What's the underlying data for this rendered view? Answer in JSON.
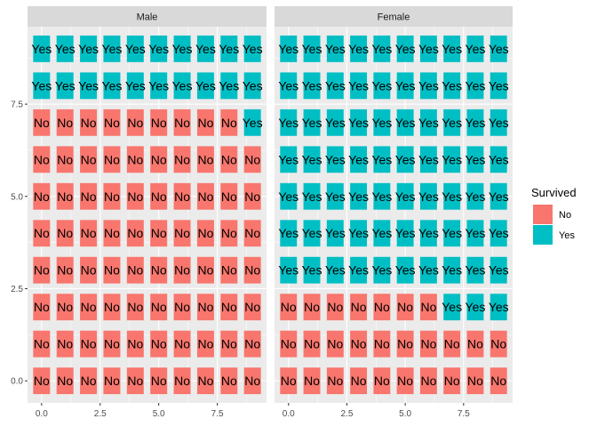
{
  "chart_data": {
    "type": "heatmap",
    "facets": [
      "Male",
      "Female"
    ],
    "x": [
      0,
      1,
      2,
      3,
      4,
      5,
      6,
      7,
      8,
      9
    ],
    "y": [
      0,
      1,
      2,
      3,
      4,
      5,
      6,
      7,
      8,
      9
    ],
    "x_ticks": [
      "0.0",
      "2.5",
      "5.0",
      "7.5"
    ],
    "y_ticks": [
      "0.0",
      "2.5",
      "5.0",
      "7.5"
    ],
    "xlim": [
      -0.6,
      9.6
    ],
    "ylim": [
      -0.6,
      9.6
    ],
    "grid": true,
    "legend": {
      "title": "Survived",
      "position": "right",
      "entries": [
        {
          "label": "No",
          "color": "#F8766D"
        },
        {
          "label": "Yes",
          "color": "#00BFC4"
        }
      ]
    },
    "cell_labels": [
      "No",
      "Yes"
    ],
    "rows": {
      "Male": [
        [
          0,
          0,
          0,
          0,
          0,
          0,
          0,
          0,
          0,
          0
        ],
        [
          0,
          0,
          0,
          0,
          0,
          0,
          0,
          0,
          0,
          0
        ],
        [
          0,
          0,
          0,
          0,
          0,
          0,
          0,
          0,
          0,
          0
        ],
        [
          0,
          0,
          0,
          0,
          0,
          0,
          0,
          0,
          0,
          0
        ],
        [
          0,
          0,
          0,
          0,
          0,
          0,
          0,
          0,
          0,
          0
        ],
        [
          0,
          0,
          0,
          0,
          0,
          0,
          0,
          0,
          0,
          0
        ],
        [
          0,
          0,
          0,
          0,
          0,
          0,
          0,
          0,
          0,
          0
        ],
        [
          0,
          0,
          0,
          0,
          0,
          0,
          0,
          0,
          0,
          1
        ],
        [
          1,
          1,
          1,
          1,
          1,
          1,
          1,
          1,
          1,
          1
        ],
        [
          1,
          1,
          1,
          1,
          1,
          1,
          1,
          1,
          1,
          1
        ]
      ],
      "Female": [
        [
          0,
          0,
          0,
          0,
          0,
          0,
          0,
          0,
          0,
          0
        ],
        [
          0,
          0,
          0,
          0,
          0,
          0,
          0,
          0,
          0,
          0
        ],
        [
          0,
          0,
          0,
          0,
          0,
          0,
          0,
          1,
          1,
          1
        ],
        [
          1,
          1,
          1,
          1,
          1,
          1,
          1,
          1,
          1,
          1
        ],
        [
          1,
          1,
          1,
          1,
          1,
          1,
          1,
          1,
          1,
          1
        ],
        [
          1,
          1,
          1,
          1,
          1,
          1,
          1,
          1,
          1,
          1
        ],
        [
          1,
          1,
          1,
          1,
          1,
          1,
          1,
          1,
          1,
          1
        ],
        [
          1,
          1,
          1,
          1,
          1,
          1,
          1,
          1,
          1,
          1
        ],
        [
          1,
          1,
          1,
          1,
          1,
          1,
          1,
          1,
          1,
          1
        ],
        [
          1,
          1,
          1,
          1,
          1,
          1,
          1,
          1,
          1,
          1
        ]
      ]
    },
    "colors": {
      "panel_bg": "#EBEBEB",
      "strip_bg": "#D9D9D9",
      "grid": "#FFFFFF"
    }
  }
}
